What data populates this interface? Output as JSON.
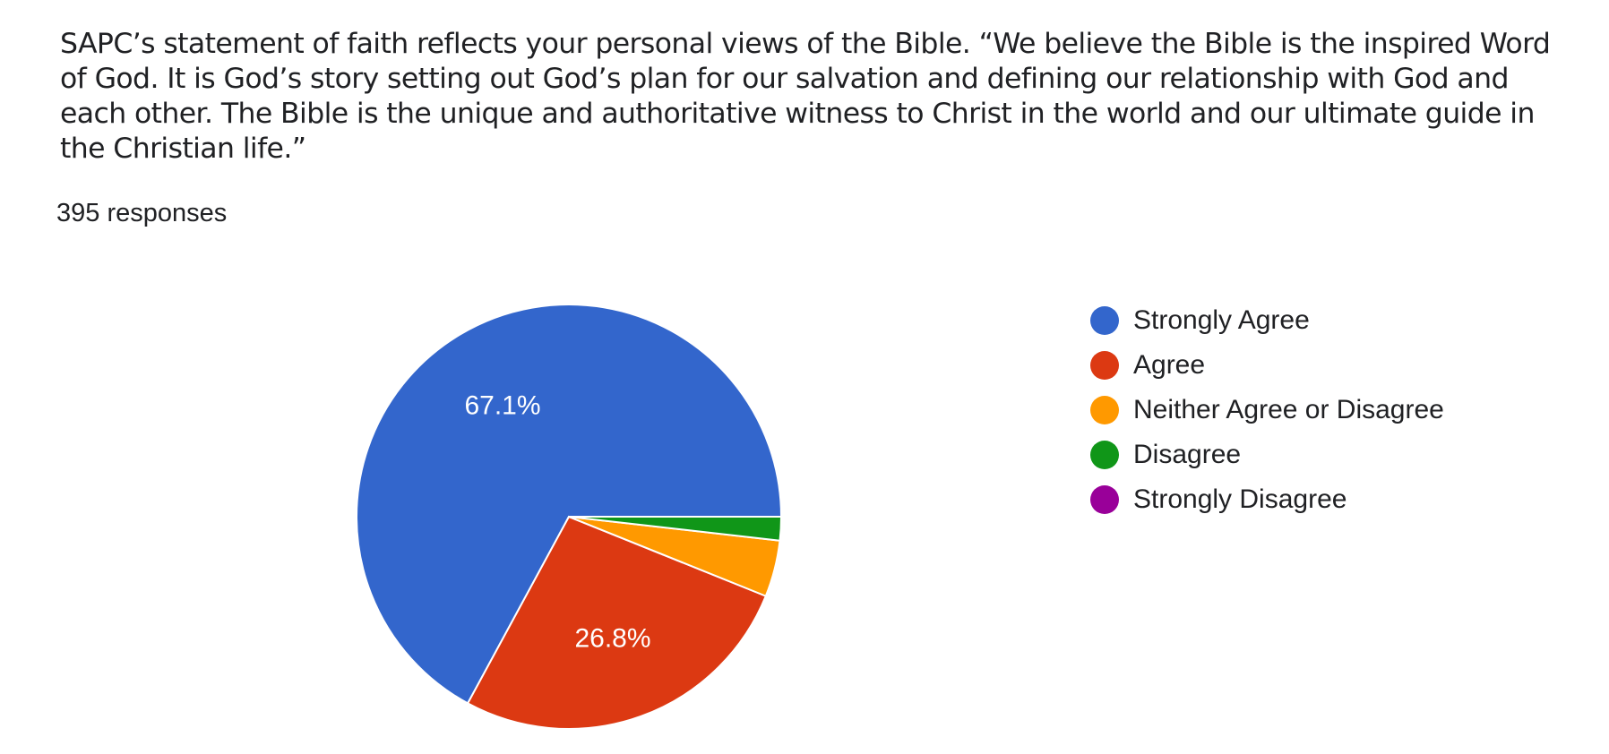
{
  "question": {
    "text": "SAPC’s statement of faith reflects your personal views of the Bible. “We believe the Bible is the inspired Word of God. It is God’s story setting out God’s plan for our salvation and defining our relationship with God and each other. The Bible is the unique and authoritative witness to Christ in the world and our ultimate guide in the Christian life.”"
  },
  "responses_count": "395 responses",
  "chart_data": {
    "type": "pie",
    "title": "",
    "legend_position": "right",
    "slices": [
      {
        "label": "Strongly Agree",
        "percent": 67.1,
        "color": "#3366cc",
        "data_label": "67.1%"
      },
      {
        "label": "Agree",
        "percent": 26.8,
        "color": "#dc3912",
        "data_label": "26.8%"
      },
      {
        "label": "Neither Agree or Disagree",
        "percent": 4.3,
        "color": "#ff9900",
        "data_label": ""
      },
      {
        "label": "Disagree",
        "percent": 1.8,
        "color": "#109618",
        "data_label": ""
      },
      {
        "label": "Strongly Disagree",
        "percent": 0.0,
        "color": "#990099",
        "data_label": ""
      }
    ]
  }
}
